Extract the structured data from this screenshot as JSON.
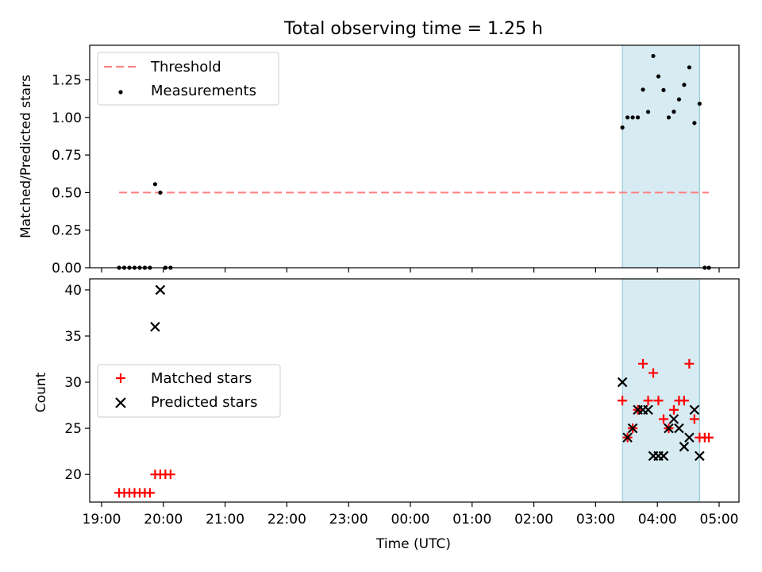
{
  "chart_data": [
    {
      "type": "scatter",
      "title": "Total observing time = 1.25 h",
      "xlabel": "",
      "ylabel": "Matched/Predicted stars",
      "ylim": [
        0,
        1.48
      ],
      "yticks": [
        "0.00",
        "0.25",
        "0.50",
        "0.75",
        "1.00",
        "1.25"
      ],
      "legend_position": "upper-left",
      "highlight_span": {
        "start": "03:26",
        "end": "04:41",
        "color": "#add8e6"
      },
      "threshold": {
        "name": "Threshold",
        "value": 0.5,
        "x_start": "19:17",
        "x_end": "04:50",
        "color": "#ff7f7f",
        "style": "dashed"
      },
      "series": [
        {
          "name": "Measurements",
          "color": "#000000",
          "marker": "dot",
          "points": [
            [
              "19:17",
              0.0
            ],
            [
              "19:22",
              0.0
            ],
            [
              "19:27",
              0.0
            ],
            [
              "19:32",
              0.0
            ],
            [
              "19:37",
              0.0
            ],
            [
              "19:42",
              0.0
            ],
            [
              "19:47",
              0.0
            ],
            [
              "19:52",
              0.556
            ],
            [
              "19:57",
              0.5
            ],
            [
              "20:02",
              0.0
            ],
            [
              "20:07",
              0.0
            ],
            [
              "03:26",
              0.933
            ],
            [
              "03:31",
              1.0
            ],
            [
              "03:36",
              1.0
            ],
            [
              "03:41",
              1.0
            ],
            [
              "03:46",
              1.185
            ],
            [
              "03:51",
              1.037
            ],
            [
              "03:56",
              1.409
            ],
            [
              "04:01",
              1.273
            ],
            [
              "04:06",
              1.182
            ],
            [
              "04:11",
              1.0
            ],
            [
              "04:16",
              1.038
            ],
            [
              "04:21",
              1.12
            ],
            [
              "04:26",
              1.217
            ],
            [
              "04:31",
              1.333
            ],
            [
              "04:36",
              0.963
            ],
            [
              "04:41",
              1.091
            ],
            [
              "04:46",
              0.0
            ],
            [
              "04:50",
              0.0
            ]
          ]
        }
      ]
    },
    {
      "type": "scatter",
      "title": "",
      "xlabel": "Time (UTC)",
      "ylabel": "Count",
      "ylim": [
        17.0,
        41.2
      ],
      "yticks": [
        "20",
        "25",
        "30",
        "35",
        "40"
      ],
      "xticks": [
        "19:00",
        "20:00",
        "21:00",
        "22:00",
        "23:00",
        "00:00",
        "01:00",
        "02:00",
        "03:00",
        "04:00",
        "05:00"
      ],
      "legend_position": "center-left",
      "highlight_span": {
        "start": "03:26",
        "end": "04:41",
        "color": "#add8e6"
      },
      "series": [
        {
          "name": "Matched stars",
          "color": "#ff0000",
          "marker": "plus",
          "points": [
            [
              "19:17",
              18
            ],
            [
              "19:22",
              18
            ],
            [
              "19:27",
              18
            ],
            [
              "19:32",
              18
            ],
            [
              "19:37",
              18
            ],
            [
              "19:42",
              18
            ],
            [
              "19:47",
              18
            ],
            [
              "19:52",
              20
            ],
            [
              "19:57",
              20
            ],
            [
              "20:02",
              20
            ],
            [
              "20:07",
              20
            ],
            [
              "03:26",
              28
            ],
            [
              "03:31",
              24
            ],
            [
              "03:36",
              25
            ],
            [
              "03:41",
              27
            ],
            [
              "03:46",
              32
            ],
            [
              "03:51",
              28
            ],
            [
              "03:56",
              31
            ],
            [
              "04:01",
              28
            ],
            [
              "04:06",
              26
            ],
            [
              "04:11",
              25
            ],
            [
              "04:16",
              27
            ],
            [
              "04:21",
              28
            ],
            [
              "04:26",
              28
            ],
            [
              "04:31",
              32
            ],
            [
              "04:36",
              26
            ],
            [
              "04:41",
              24
            ],
            [
              "04:46",
              24
            ],
            [
              "04:50",
              24
            ]
          ]
        },
        {
          "name": "Predicted stars",
          "color": "#000000",
          "marker": "x",
          "points": [
            [
              "19:52",
              36
            ],
            [
              "19:57",
              40
            ],
            [
              "03:26",
              30
            ],
            [
              "03:31",
              24
            ],
            [
              "03:36",
              25
            ],
            [
              "03:41",
              27
            ],
            [
              "03:46",
              27
            ],
            [
              "03:51",
              27
            ],
            [
              "03:56",
              22
            ],
            [
              "04:01",
              22
            ],
            [
              "04:06",
              22
            ],
            [
              "04:11",
              25
            ],
            [
              "04:16",
              26
            ],
            [
              "04:21",
              25
            ],
            [
              "04:26",
              23
            ],
            [
              "04:31",
              24
            ],
            [
              "04:36",
              27
            ],
            [
              "04:41",
              22
            ]
          ]
        }
      ]
    }
  ]
}
